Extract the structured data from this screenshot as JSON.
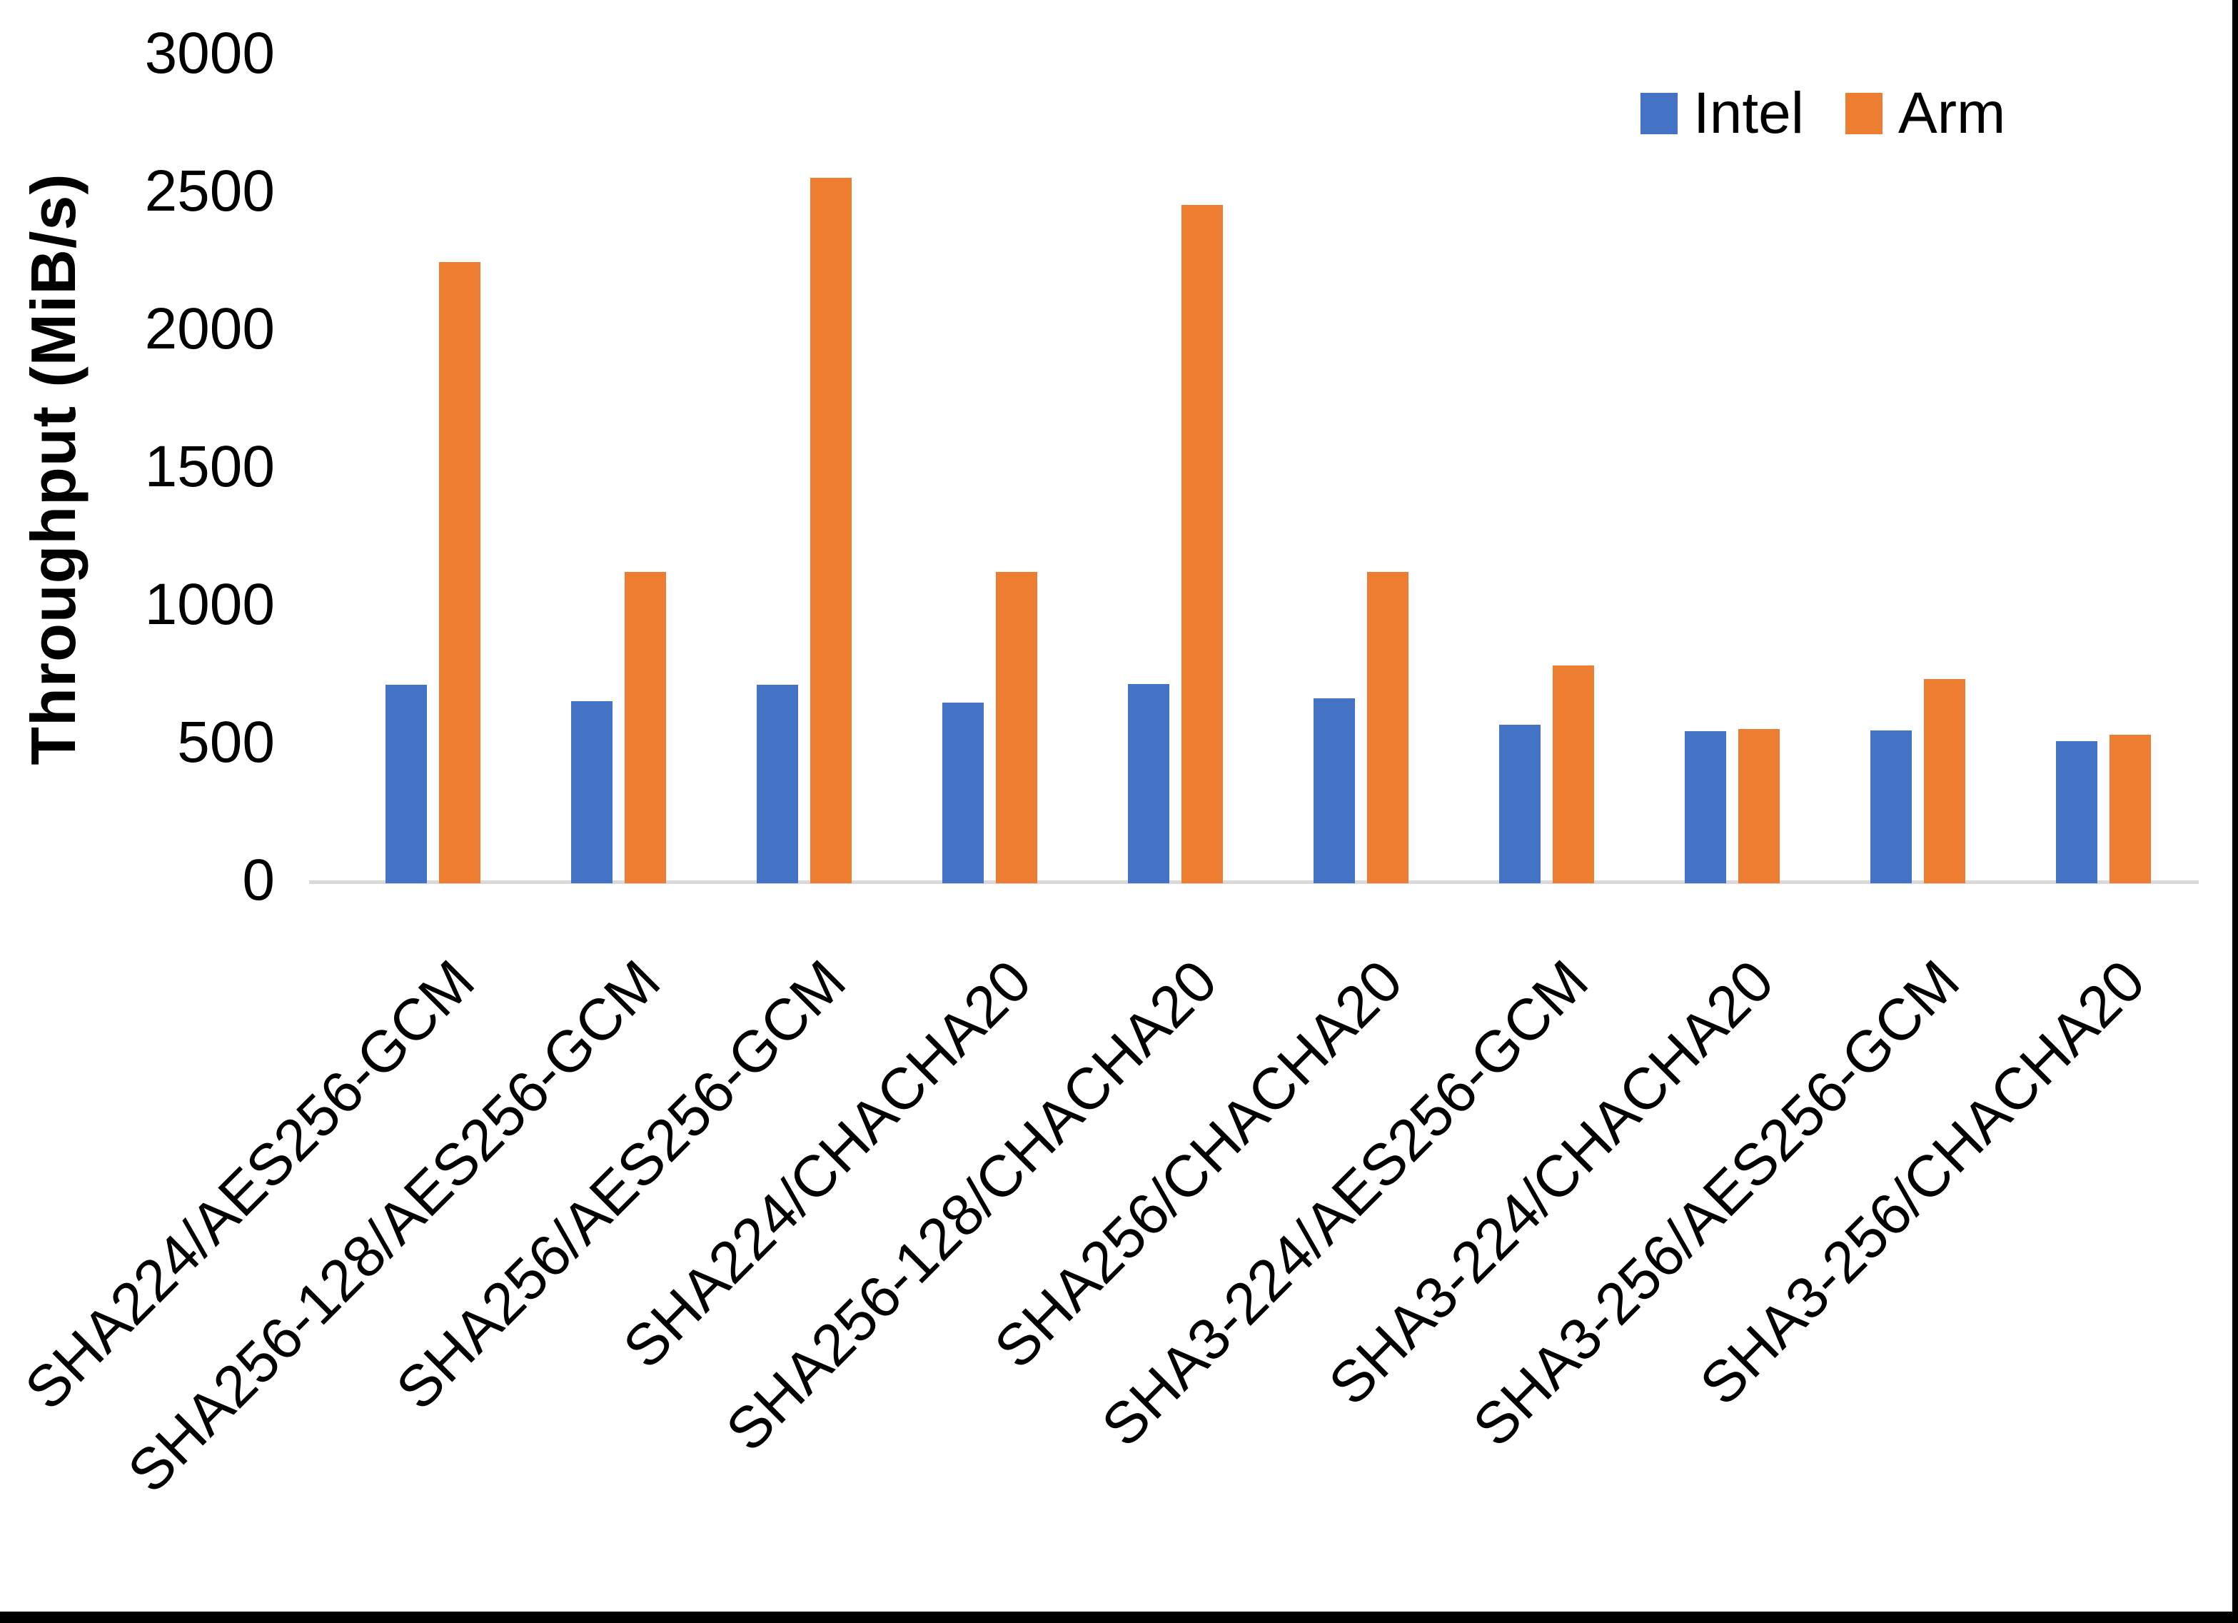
{
  "chart_data": {
    "type": "bar",
    "title": "",
    "xlabel": "",
    "ylabel": "Throughput (MiB/s)",
    "ylim": [
      0,
      3000
    ],
    "ytick_step": 500,
    "yticks": [
      0,
      500,
      1000,
      1500,
      2000,
      2500,
      3000
    ],
    "grid": false,
    "legend_position": "top-right",
    "categories": [
      "SHA224/AES256-GCM",
      "SHA256-128/AES256-GCM",
      "SHA256/AES256-GCM",
      "SHA224/CHACHA20",
      "SHA256-128/CHACHA20",
      "SHA256/CHACHA20",
      "SHA3-224/AES256-GCM",
      "SHA3-224/CHACHA20",
      "SHA3-256/AES256-GCM",
      "SHA3-256/CHACHA20"
    ],
    "series": [
      {
        "name": "Intel",
        "color": "#4472C4",
        "values": [
          720,
          660,
          720,
          655,
          722,
          670,
          575,
          553,
          555,
          515
        ]
      },
      {
        "name": "Arm",
        "color": "#ED7D31",
        "values": [
          2255,
          1130,
          2560,
          1130,
          2460,
          1130,
          790,
          560,
          740,
          540
        ]
      }
    ]
  },
  "legend": {
    "items": [
      {
        "label": "Intel",
        "color": "#4472C4"
      },
      {
        "label": "Arm",
        "color": "#ED7D31"
      }
    ]
  },
  "colors": {
    "axis_line": "#D9D9D9",
    "text": "#000000",
    "frame": "#000000",
    "background": "#FFFFFF"
  }
}
